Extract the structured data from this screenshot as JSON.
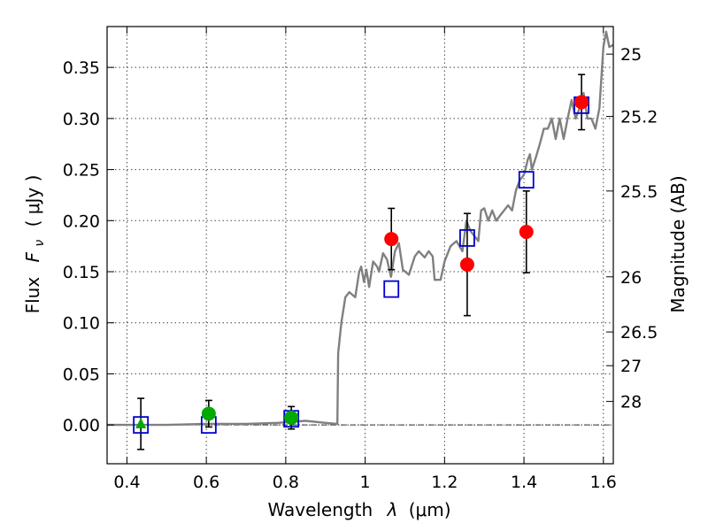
{
  "chart_data": {
    "type": "scatter",
    "xlabel_prefix": "Wavelength",
    "xlabel_symbol": "λ",
    "xlabel_unit": "(μm)",
    "ylabel_prefix": "Flux",
    "ylabel_symbol": "F",
    "ylabel_subscript": "ν",
    "ylabel_unit": "( μJy )",
    "y2label": "Magnitude (AB)",
    "xlim": [
      0.35,
      1.625
    ],
    "ylim": [
      -0.038,
      0.39
    ],
    "grid": true,
    "x_ticks": [
      {
        "value": 0.4,
        "label": "0.4"
      },
      {
        "value": 0.6,
        "label": "0.6"
      },
      {
        "value": 0.8,
        "label": "0.8"
      },
      {
        "value": 1.0,
        "label": "1"
      },
      {
        "value": 1.2,
        "label": "1.2"
      },
      {
        "value": 1.4,
        "label": "1.4"
      },
      {
        "value": 1.6,
        "label": "1.6"
      }
    ],
    "y_ticks": [
      {
        "value": 0.0,
        "label": "0.00"
      },
      {
        "value": 0.05,
        "label": "0.05"
      },
      {
        "value": 0.1,
        "label": "0.10"
      },
      {
        "value": 0.15,
        "label": "0.15"
      },
      {
        "value": 0.2,
        "label": "0.20"
      },
      {
        "value": 0.25,
        "label": "0.25"
      },
      {
        "value": 0.3,
        "label": "0.30"
      },
      {
        "value": 0.35,
        "label": "0.35"
      }
    ],
    "y2_ticks": [
      {
        "flux": 0.363,
        "label": "25"
      },
      {
        "flux": 0.302,
        "label": "25.2"
      },
      {
        "flux": 0.229,
        "label": "25.5"
      },
      {
        "flux": 0.145,
        "label": "26"
      },
      {
        "flux": 0.091,
        "label": "26.5"
      },
      {
        "flux": 0.058,
        "label": "27"
      },
      {
        "flux": 0.023,
        "label": "28"
      }
    ],
    "series": [
      {
        "type": "line",
        "color": "#808080",
        "points": [
          [
            0.35,
            0.0
          ],
          [
            0.5,
            0.0
          ],
          [
            0.6,
            0.001
          ],
          [
            0.7,
            0.001
          ],
          [
            0.78,
            0.002
          ],
          [
            0.85,
            0.004
          ],
          [
            0.9,
            0.002
          ],
          [
            0.93,
            0.001
          ],
          [
            0.932,
            0.07
          ],
          [
            0.94,
            0.1
          ],
          [
            0.95,
            0.125
          ],
          [
            0.96,
            0.13
          ],
          [
            0.975,
            0.125
          ],
          [
            0.985,
            0.15
          ],
          [
            0.99,
            0.155
          ],
          [
            0.997,
            0.14
          ],
          [
            1.003,
            0.152
          ],
          [
            1.01,
            0.135
          ],
          [
            1.02,
            0.16
          ],
          [
            1.03,
            0.155
          ],
          [
            1.035,
            0.15
          ],
          [
            1.045,
            0.168
          ],
          [
            1.055,
            0.162
          ],
          [
            1.065,
            0.145
          ],
          [
            1.075,
            0.17
          ],
          [
            1.085,
            0.178
          ],
          [
            1.095,
            0.152
          ],
          [
            1.11,
            0.147
          ],
          [
            1.125,
            0.165
          ],
          [
            1.135,
            0.17
          ],
          [
            1.15,
            0.164
          ],
          [
            1.16,
            0.17
          ],
          [
            1.17,
            0.165
          ],
          [
            1.175,
            0.142
          ],
          [
            1.19,
            0.142
          ],
          [
            1.2,
            0.16
          ],
          [
            1.215,
            0.175
          ],
          [
            1.23,
            0.18
          ],
          [
            1.245,
            0.17
          ],
          [
            1.255,
            0.2
          ],
          [
            1.265,
            0.19
          ],
          [
            1.275,
            0.185
          ],
          [
            1.285,
            0.18
          ],
          [
            1.292,
            0.21
          ],
          [
            1.3,
            0.212
          ],
          [
            1.31,
            0.2
          ],
          [
            1.32,
            0.21
          ],
          [
            1.33,
            0.2
          ],
          [
            1.34,
            0.205
          ],
          [
            1.35,
            0.21
          ],
          [
            1.36,
            0.215
          ],
          [
            1.37,
            0.21
          ],
          [
            1.38,
            0.23
          ],
          [
            1.39,
            0.24
          ],
          [
            1.4,
            0.245
          ],
          [
            1.41,
            0.26
          ],
          [
            1.415,
            0.265
          ],
          [
            1.42,
            0.25
          ],
          [
            1.43,
            0.262
          ],
          [
            1.44,
            0.275
          ],
          [
            1.45,
            0.29
          ],
          [
            1.46,
            0.29
          ],
          [
            1.47,
            0.3
          ],
          [
            1.48,
            0.28
          ],
          [
            1.49,
            0.3
          ],
          [
            1.5,
            0.28
          ],
          [
            1.51,
            0.3
          ],
          [
            1.52,
            0.318
          ],
          [
            1.53,
            0.3
          ],
          [
            1.54,
            0.31
          ],
          [
            1.55,
            0.325
          ],
          [
            1.56,
            0.3
          ],
          [
            1.57,
            0.3
          ],
          [
            1.58,
            0.29
          ],
          [
            1.59,
            0.31
          ],
          [
            1.6,
            0.37
          ],
          [
            1.607,
            0.385
          ],
          [
            1.615,
            0.37
          ],
          [
            1.625,
            0.372
          ]
        ]
      },
      {
        "type": "model-photometry",
        "marker": "open-square",
        "color": "#0000cc",
        "points": [
          [
            0.435,
            0.0
          ],
          [
            0.606,
            0.0
          ],
          [
            0.814,
            0.006
          ],
          [
            1.066,
            0.133
          ],
          [
            1.257,
            0.183
          ],
          [
            1.406,
            0.24
          ],
          [
            1.545,
            0.313
          ]
        ]
      },
      {
        "type": "observed-optical",
        "marker": "circle",
        "color": "#00aa00",
        "points": [
          {
            "x": 0.606,
            "y": 0.011,
            "err": 0.013
          },
          {
            "x": 0.814,
            "y": 0.007,
            "err": 0.011
          }
        ]
      },
      {
        "type": "observed-upper-limit",
        "marker": "triangle",
        "color": "#00aa00",
        "points": [
          {
            "x": 0.435,
            "y": 0.001,
            "err": 0.025
          }
        ]
      },
      {
        "type": "observed-infrared",
        "marker": "circle",
        "color": "#ff0000",
        "points": [
          {
            "x": 1.066,
            "y": 0.182,
            "err": 0.03
          },
          {
            "x": 1.257,
            "y": 0.157,
            "err": 0.05
          },
          {
            "x": 1.406,
            "y": 0.189,
            "err": 0.04
          },
          {
            "x": 1.545,
            "y": 0.316,
            "err": 0.027
          }
        ]
      }
    ]
  }
}
